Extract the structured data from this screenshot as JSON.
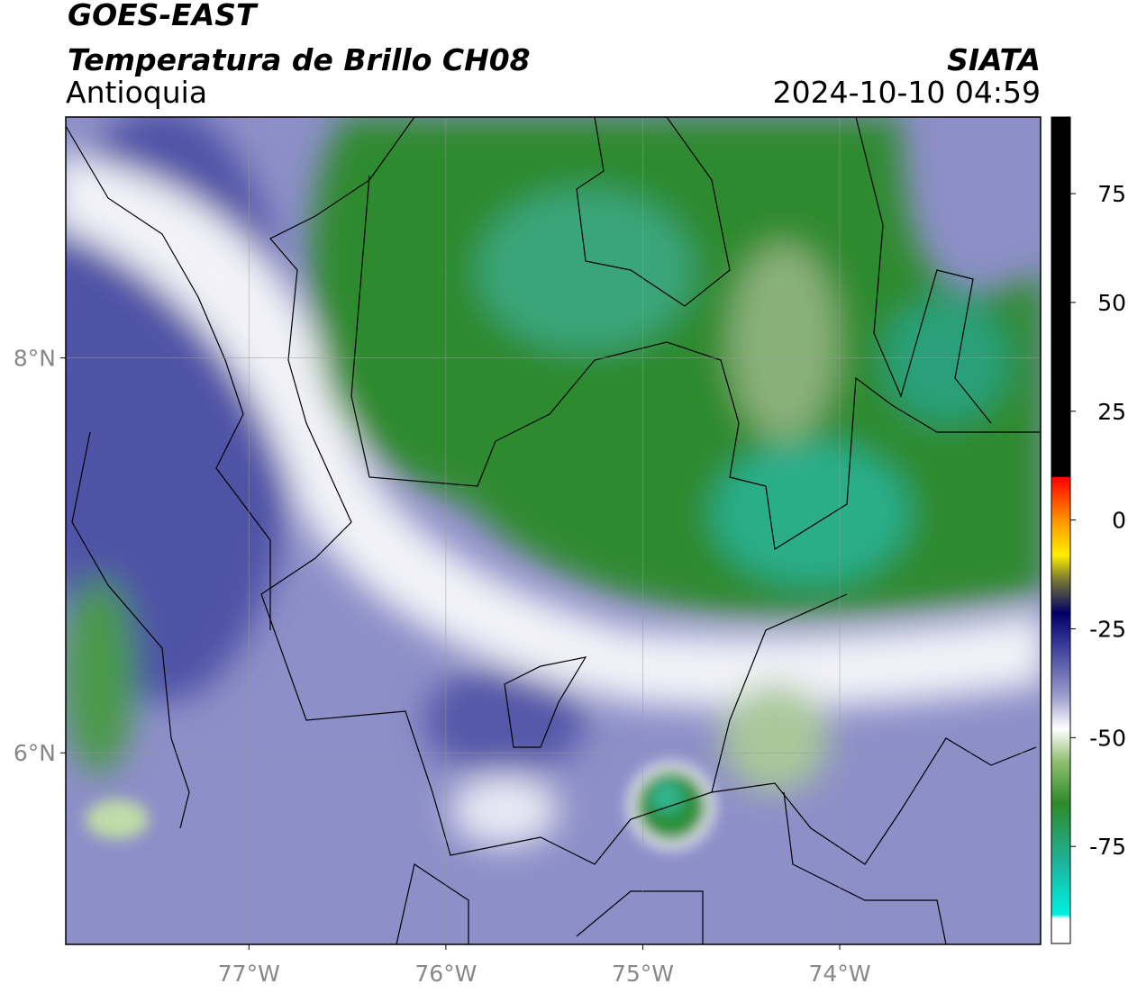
{
  "header": {
    "title": "GOES-EAST",
    "subtitle": "Temperatura de Brillo CH08",
    "region": "Antioquia",
    "source": "SIATA",
    "datetime": "2024-10-10 04:59"
  },
  "map": {
    "lonlim": [
      -77.93,
      -72.98
    ],
    "latlim": [
      5.03,
      9.22
    ],
    "lon_ticks": [
      {
        "value": -77,
        "label": "77°W"
      },
      {
        "value": -76,
        "label": "76°W"
      },
      {
        "value": -75,
        "label": "75°W"
      },
      {
        "value": -74,
        "label": "74°W"
      }
    ],
    "lat_ticks": [
      {
        "value": 8,
        "label": "8°N"
      },
      {
        "value": 6,
        "label": "6°N"
      }
    ]
  },
  "colorbar": {
    "range": [
      -97.3,
      92.6
    ],
    "ticks": [
      75,
      50,
      25,
      0,
      -25,
      -50,
      -75
    ]
  }
}
